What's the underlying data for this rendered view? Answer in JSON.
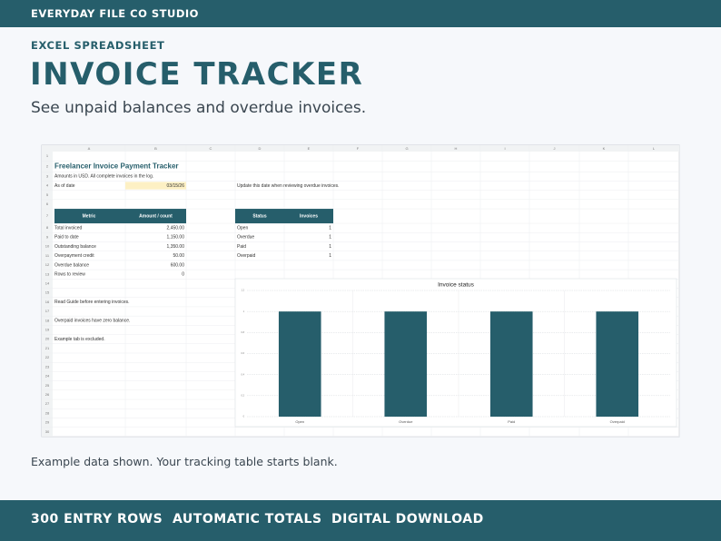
{
  "header": {
    "brand": "EVERYDAY FILE CO STUDIO",
    "kicker": "EXCEL SPREADSHEET",
    "title": "INVOICE TRACKER",
    "tagline": "See unpaid balances and overdue invoices."
  },
  "spreadsheet": {
    "columns": [
      "A",
      "B",
      "C",
      "D",
      "E",
      "F",
      "G",
      "H",
      "I",
      "J",
      "K",
      "L"
    ],
    "rows": [
      {
        "row": 1
      },
      {
        "row": 2,
        "A": "Freelancer Invoice Payment Tracker"
      },
      {
        "row": 3,
        "A": "Amounts in USD. All complete invoices in the log."
      },
      {
        "row": 4,
        "A": "As of date",
        "B": "03/15/26",
        "D": "Update this date when reviewing overdue invoices."
      },
      {
        "row": 5
      },
      {
        "row": 6
      },
      {
        "row": 7,
        "A": "Metric",
        "B": "Amount / count",
        "D": "Status",
        "E": "Invoices"
      },
      {
        "row": 8,
        "A": "Total invoiced",
        "B": "2,450.00",
        "D": "Open",
        "E": "1"
      },
      {
        "row": 9,
        "A": "Paid to date",
        "B": "1,150.00",
        "D": "Overdue",
        "E": "1"
      },
      {
        "row": 10,
        "A": "Outstanding balance",
        "B": "1,350.00",
        "D": "Paid",
        "E": "1"
      },
      {
        "row": 11,
        "A": "Overpayment credit",
        "B": "50.00",
        "D": "Overpaid",
        "E": "1"
      },
      {
        "row": 12,
        "A": "Overdue balance",
        "B": "600.00"
      },
      {
        "row": 13,
        "A": "Rows to review",
        "B": "0"
      },
      {
        "row": 14
      },
      {
        "row": 15
      },
      {
        "row": 16,
        "A": "Read Guide before entering invoices."
      },
      {
        "row": 17
      },
      {
        "row": 18,
        "A": "Overpaid invoices have zero balance."
      },
      {
        "row": 19
      },
      {
        "row": 20,
        "A": "Example tab is excluded."
      },
      {
        "row": 21
      },
      {
        "row": 22
      },
      {
        "row": 23
      },
      {
        "row": 24
      },
      {
        "row": 25
      },
      {
        "row": 26
      },
      {
        "row": 27
      },
      {
        "row": 28
      },
      {
        "row": 29
      },
      {
        "row": 30
      }
    ]
  },
  "chart_data": {
    "type": "bar",
    "title": "Invoice status",
    "categories": [
      "Open",
      "Overdue",
      "Paid",
      "Overpaid"
    ],
    "values": [
      1,
      1,
      1,
      1
    ],
    "color": "#265e6b",
    "ylim": [
      0,
      1.2
    ],
    "yticks": [
      0,
      0.2,
      0.4,
      0.6,
      0.8,
      1,
      1.2
    ],
    "grid": true
  },
  "footer": {
    "note": "Example data shown. Your tracking table starts blank.",
    "features": [
      "300 ENTRY ROWS",
      "AUTOMATIC TOTALS",
      "DIGITAL DOWNLOAD"
    ]
  }
}
